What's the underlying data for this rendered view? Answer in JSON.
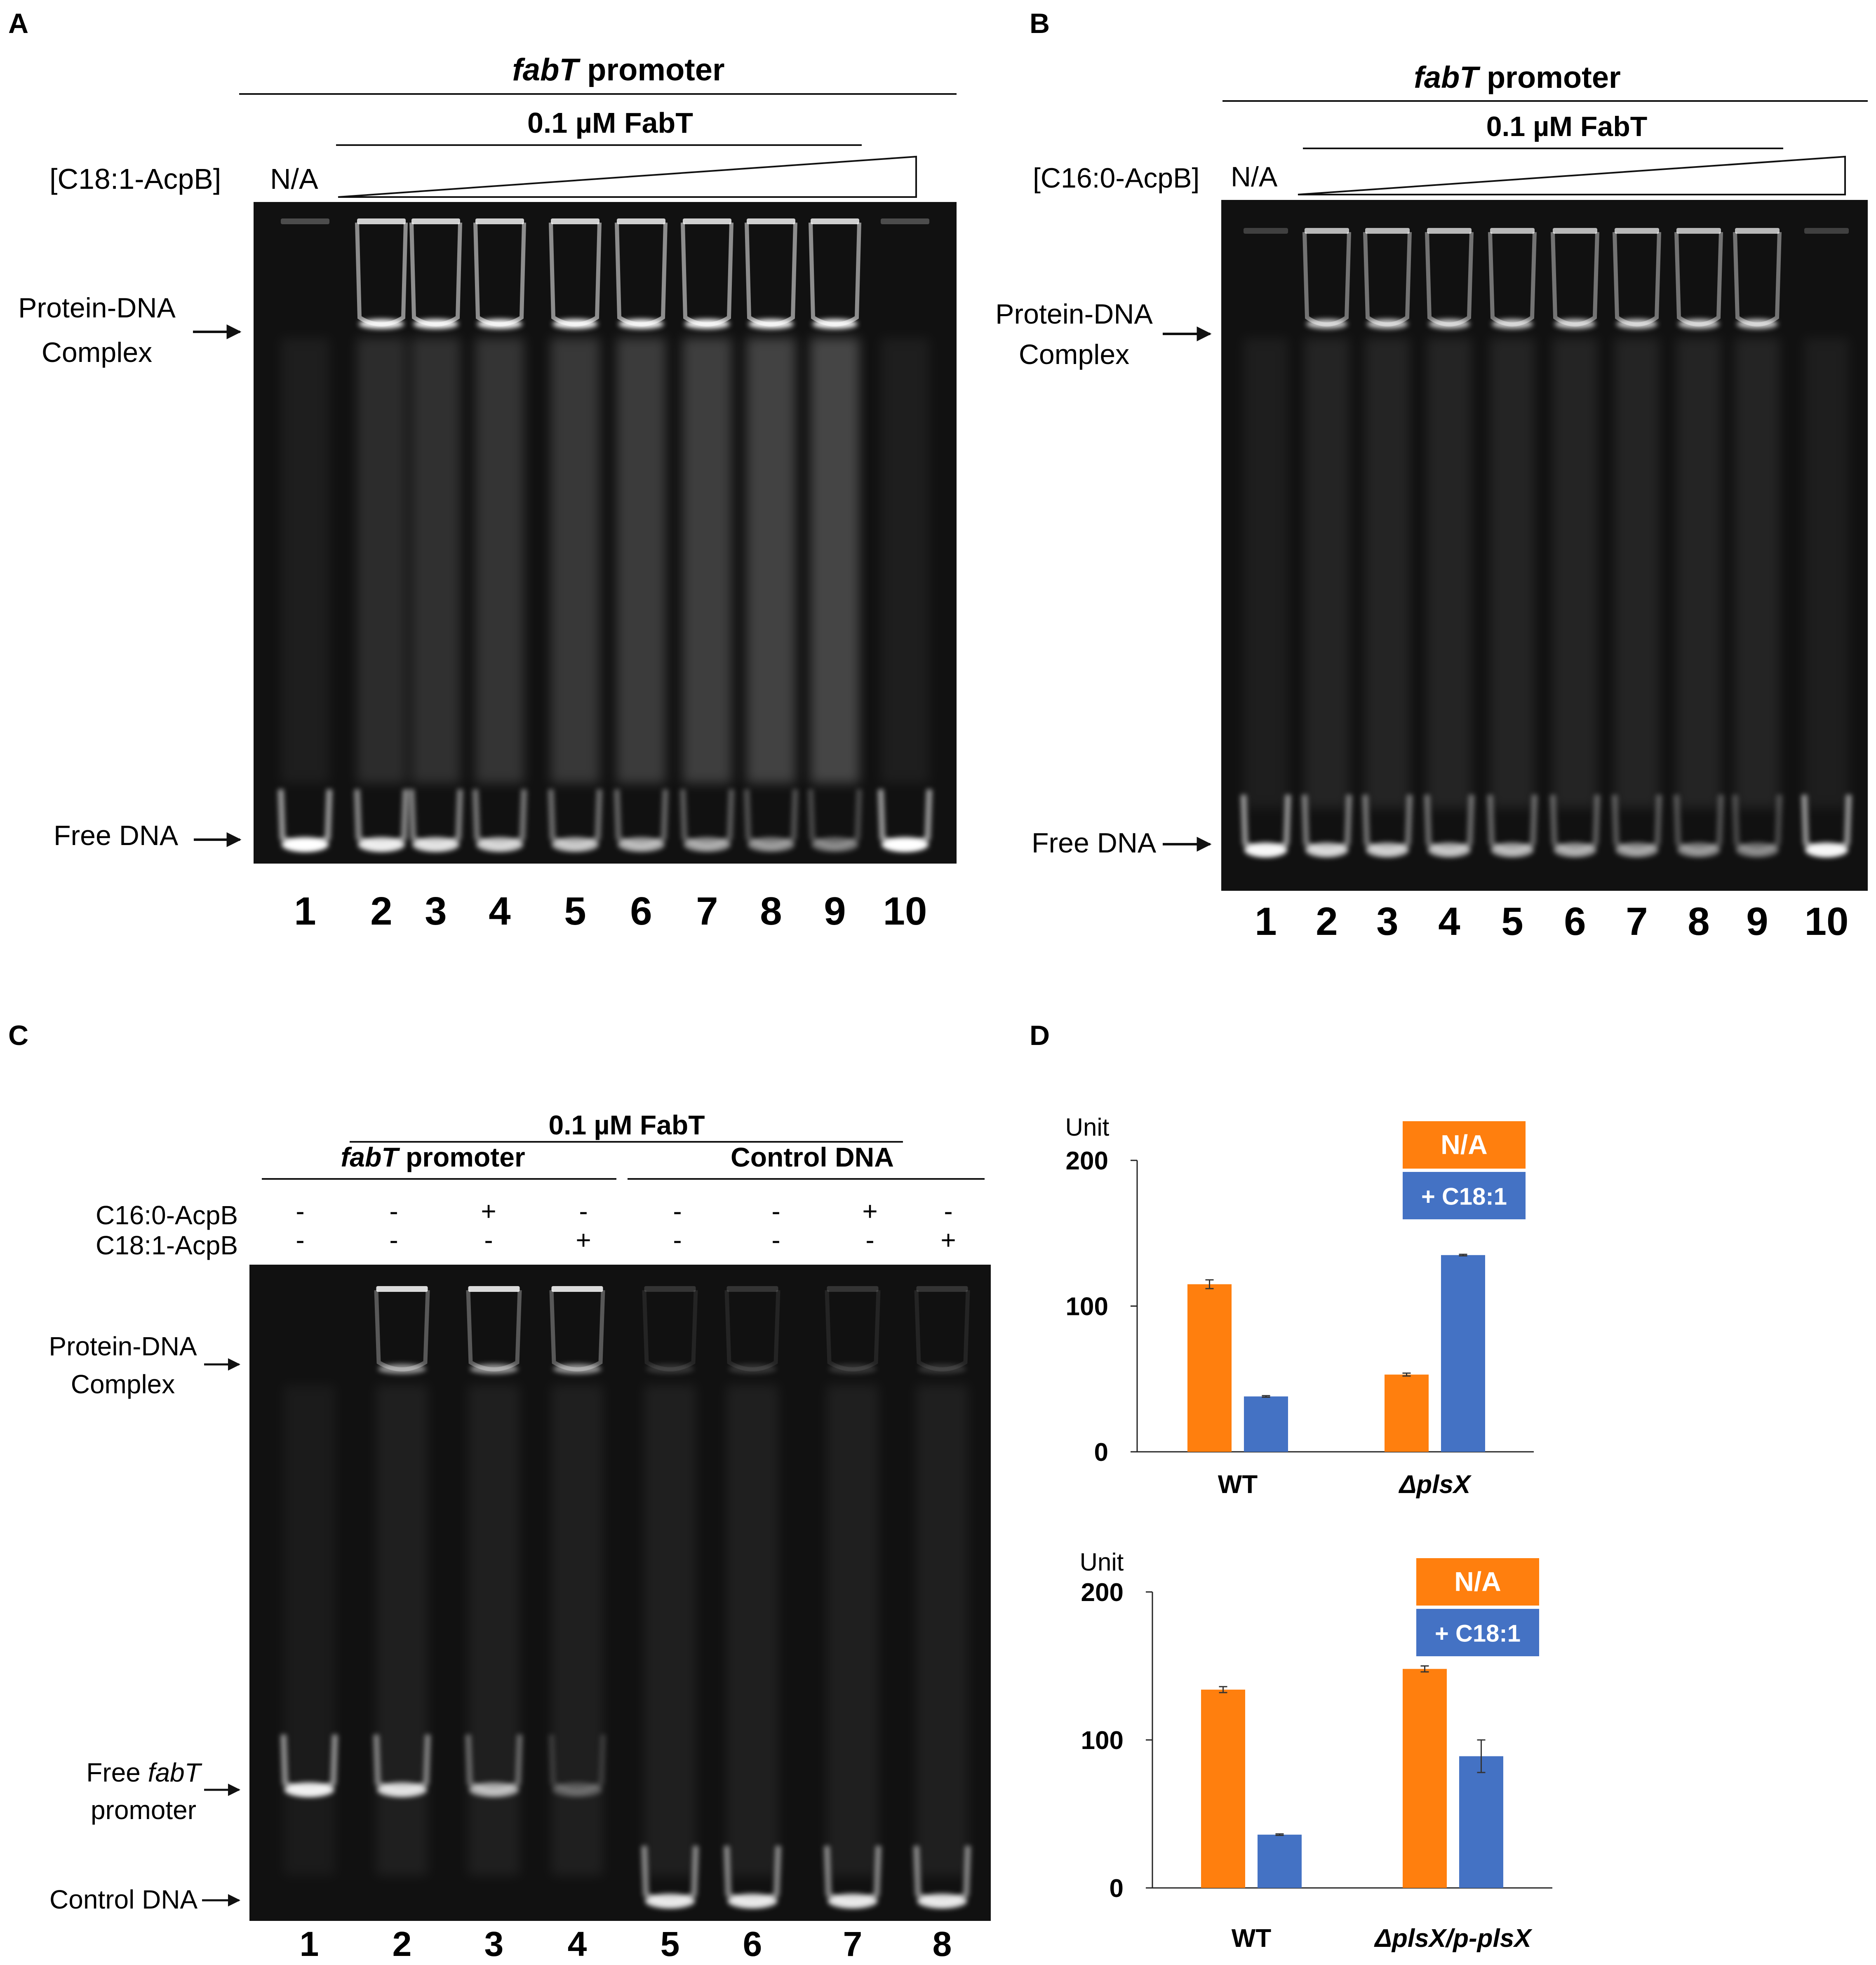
{
  "panels": {
    "A": {
      "letter": "A",
      "title_italic": "fabT",
      "title_rest": " promoter",
      "protein_label": "0.1 µM FabT",
      "ligand_label": "[C18:1-AcpB]",
      "na_label": "N/A",
      "complex_label": [
        "Protein-DNA",
        "Complex"
      ],
      "free_label": "Free DNA",
      "lanes": [
        "1",
        "2",
        "3",
        "4",
        "5",
        "6",
        "7",
        "8",
        "9",
        "10"
      ]
    },
    "B": {
      "letter": "B",
      "title_italic": "fabT",
      "title_rest": " promoter",
      "protein_label": "0.1 µM FabT",
      "ligand_label": "[C16:0-AcpB]",
      "na_label": "N/A",
      "complex_label": [
        "Protein-DNA",
        "Complex"
      ],
      "free_label": "Free DNA",
      "lanes": [
        "1",
        "2",
        "3",
        "4",
        "5",
        "6",
        "7",
        "8",
        "9",
        "10"
      ]
    },
    "C": {
      "letter": "C",
      "protein_label": "0.1 µM FabT",
      "group1_italic": "fabT",
      "group1_rest": " promoter",
      "group2": "Control DNA",
      "row_labels": [
        "C16:0-AcpB",
        "C18:1-AcpB"
      ],
      "c16_signs": [
        "-",
        "-",
        "+",
        "-",
        "-",
        "-",
        "+",
        "-"
      ],
      "c18_signs": [
        "-",
        "-",
        "-",
        "+",
        "-",
        "-",
        "-",
        "+"
      ],
      "complex_label": [
        "Protein-DNA",
        "Complex"
      ],
      "free_label_1": "Free ",
      "free_label_italic": "fabT",
      "free_label_2": "promoter",
      "control_label": "Control DNA",
      "lanes": [
        "1",
        "2",
        "3",
        "4",
        "5",
        "6",
        "7",
        "8"
      ]
    },
    "D": {
      "letter": "D"
    }
  },
  "chart_data": [
    {
      "type": "bar",
      "ylabel": "Unit",
      "ylim": [
        0,
        200
      ],
      "yticks": [
        "0",
        "100",
        "200"
      ],
      "categories": [
        "WT",
        "ΔplsX"
      ],
      "series": [
        {
          "name": "N/A",
          "values": [
            115,
            53
          ],
          "errors": [
            3,
            1
          ],
          "color": "#FF7F0E"
        },
        {
          "name": "+ C18:1",
          "values": [
            38,
            135
          ],
          "errors": [
            0.5,
            0.5
          ],
          "color": "#4472C4"
        }
      ],
      "legend_position": "top-right"
    },
    {
      "type": "bar",
      "ylabel": "Unit",
      "ylim": [
        0,
        200
      ],
      "yticks": [
        "0",
        "100",
        "200"
      ],
      "categories": [
        "WT",
        "ΔplsX/p-plsX"
      ],
      "series": [
        {
          "name": "N/A",
          "values": [
            134,
            148
          ],
          "errors": [
            2,
            2
          ],
          "color": "#FF7F0E"
        },
        {
          "name": "+ C18:1",
          "values": [
            36,
            89
          ],
          "errors": [
            0.5,
            11
          ],
          "color": "#4472C4"
        }
      ],
      "legend_position": "top-right"
    }
  ]
}
